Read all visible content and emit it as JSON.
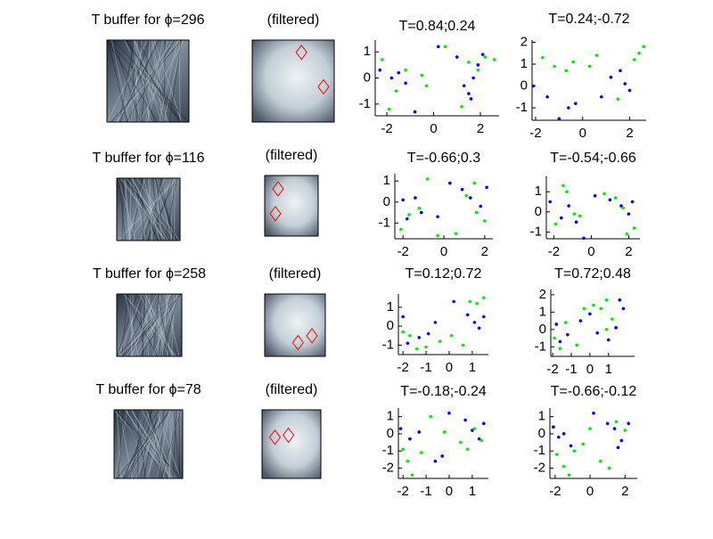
{
  "chart_data": [
    {
      "type": "image",
      "title": "T buffer for ϕ=296"
    },
    {
      "type": "image",
      "title": "(filtered)"
    },
    {
      "type": "scatter",
      "title": "T=0.84;0.24",
      "xlim": [
        -2.5,
        2.8
      ],
      "ylim": [
        -1.45,
        1.45
      ],
      "xticks": [
        -2,
        0,
        2
      ],
      "yticks": [
        -1,
        0,
        1
      ],
      "series": [
        {
          "color": "#0000ff",
          "x": [
            -2.3,
            -1.8,
            -1.5,
            -1.2,
            -0.8,
            0.2,
            1,
            1.3,
            1.5,
            1.7,
            1.9,
            2.1,
            1.6
          ],
          "values": [
            0.3,
            0,
            0.2,
            -0.2,
            -1.3,
            1.2,
            0.8,
            -0.3,
            -0.6,
            0,
            0.5,
            0.9,
            -0.8
          ]
        },
        {
          "color": "#00ee00",
          "x": [
            -2.2,
            -1.9,
            -1.6,
            -1.2,
            -0.5,
            -0.3,
            0.5,
            1.2,
            1.5,
            2.2,
            1.9,
            2.6
          ],
          "values": [
            0.7,
            -1.2,
            -0.5,
            0.3,
            0.1,
            -0.3,
            1.2,
            -1.1,
            0.6,
            0.8,
            0.3,
            0.7
          ]
        }
      ]
    },
    {
      "type": "scatter",
      "title": "T=0.24;-0.72",
      "xlim": [
        -2.15,
        2.7
      ],
      "ylim": [
        -1.57,
        2.1
      ],
      "xticks": [
        -2,
        0,
        2
      ],
      "yticks": [
        -1,
        0,
        1,
        2
      ],
      "series": [
        {
          "color": "#0000ff",
          "x": [
            -2.1,
            -1.5,
            -1,
            -0.6,
            -0.3,
            0.8,
            1.2,
            1.6,
            2,
            1.8
          ],
          "values": [
            0,
            -0.5,
            -1.5,
            -1,
            -0.8,
            -0.5,
            0.4,
            0.7,
            -0.2,
            0.1
          ]
        },
        {
          "color": "#00ee00",
          "x": [
            -1.7,
            -1.2,
            -0.7,
            -0.4,
            0.3,
            0.6,
            1.5,
            2.2,
            2.6,
            2.4
          ],
          "values": [
            1.3,
            0.9,
            0.7,
            1.1,
            0.9,
            1.4,
            -0.6,
            1.2,
            1.8,
            1.5
          ]
        }
      ]
    },
    {
      "type": "image",
      "title": "T buffer for ϕ=116"
    },
    {
      "type": "image",
      "title": "(filtered)"
    },
    {
      "type": "scatter",
      "title": "T=-0.66;0.3",
      "xlim": [
        -2.4,
        2.4
      ],
      "ylim": [
        -1.75,
        1.35
      ],
      "xticks": [
        -2,
        0,
        2
      ],
      "yticks": [
        -1,
        0,
        1
      ],
      "series": [
        {
          "color": "#0000ff",
          "x": [
            -2,
            -1.8,
            -1.4,
            -1.1,
            -0.3,
            0.3,
            0.9,
            1.3,
            1.8,
            2.1
          ],
          "values": [
            0.1,
            -0.8,
            0.2,
            -0.5,
            -0.7,
            0.9,
            0.6,
            0.2,
            -0.2,
            0.7
          ]
        },
        {
          "color": "#00ee00",
          "x": [
            -2.1,
            -1.7,
            -1.2,
            -0.8,
            -0.3,
            0.6,
            1.1,
            1.6,
            2,
            1.5
          ],
          "values": [
            -1.3,
            -0.6,
            -0.3,
            1.1,
            -1.6,
            -1.5,
            0.3,
            -0.5,
            -0.9,
            0.9
          ]
        }
      ]
    },
    {
      "type": "scatter",
      "title": "T=-0.54;-0.66",
      "xlim": [
        -2.4,
        2.6
      ],
      "ylim": [
        -1.33,
        1.76
      ],
      "xticks": [
        -2,
        0,
        2
      ],
      "yticks": [
        -1,
        0,
        1
      ],
      "series": [
        {
          "color": "#0000ff",
          "x": [
            -2.2,
            -1.6,
            -1.2,
            -0.8,
            -0.4,
            0.2,
            1,
            1.6,
            2,
            2.2
          ],
          "values": [
            0.5,
            -0.3,
            0.3,
            -0.5,
            -1.3,
            0.8,
            0.6,
            0.3,
            -0.1,
            0.5
          ]
        },
        {
          "color": "#00ee00",
          "x": [
            -1.9,
            -1.5,
            -1.3,
            -0.9,
            -0.6,
            0.7,
            1.3,
            1.9,
            2.3,
            1.7
          ],
          "values": [
            -0.6,
            1.3,
            1,
            -0.1,
            -0.2,
            0.9,
            0.7,
            -1.1,
            -0.8,
            0.2
          ]
        }
      ]
    },
    {
      "type": "image",
      "title": "T buffer for ϕ=258"
    },
    {
      "type": "image",
      "title": "(filtered)"
    },
    {
      "type": "scatter",
      "title": "T=0.12;0.72",
      "xlim": [
        -2.2,
        1.7
      ],
      "ylim": [
        -1.5,
        1.7
      ],
      "xticks": [
        -2,
        -1,
        0,
        1
      ],
      "yticks": [
        -1,
        0,
        1
      ],
      "series": [
        {
          "color": "#0000ff",
          "x": [
            -2,
            -1.8,
            -1.3,
            -0.9,
            -0.6,
            0.2,
            0.8,
            1.1,
            1.3,
            1.5
          ],
          "values": [
            0.5,
            -0.9,
            -0.6,
            -0.4,
            0.2,
            1.3,
            0.6,
            0.2,
            -0.1,
            0.5
          ]
        },
        {
          "color": "#00ee00",
          "x": [
            -2,
            -1.7,
            -1.4,
            -1,
            -0.4,
            0.1,
            0.6,
            1.2,
            1.5,
            0.9
          ],
          "values": [
            -0.3,
            -0.5,
            -1.2,
            -1.1,
            -0.8,
            -0.5,
            -1,
            1.2,
            1.5,
            1.3
          ]
        }
      ]
    },
    {
      "type": "scatter",
      "title": "T=0.72;0.48",
      "xlim": [
        -2.1,
        2.4
      ],
      "ylim": [
        -1.55,
        2.3
      ],
      "xticks": [
        -2,
        -1,
        0,
        1
      ],
      "yticks": [
        -1,
        0,
        1,
        2
      ],
      "series": [
        {
          "color": "#0000ff",
          "x": [
            -1.8,
            -1.6,
            -1.2,
            -0.5,
            0,
            0.4,
            1,
            1.4,
            1.8,
            1.6
          ],
          "values": [
            0.3,
            -0.7,
            -0.3,
            0.5,
            0.9,
            -0.2,
            -0.6,
            0.1,
            1.2,
            1.7
          ]
        },
        {
          "color": "#00ee00",
          "x": [
            -1.9,
            -1.6,
            -1.3,
            -0.7,
            -0.3,
            0.2,
            0.6,
            0.9,
            1.2,
            0.9
          ],
          "values": [
            -0.5,
            -1.1,
            0.4,
            -0.9,
            1.2,
            1.4,
            1.2,
            1.7,
            0.6,
            0
          ]
        }
      ]
    },
    {
      "type": "image",
      "title": "T buffer for ϕ=78"
    },
    {
      "type": "image",
      "title": "(filtered)"
    },
    {
      "type": "scatter",
      "title": "T=-0.18;-0.24",
      "xlim": [
        -2.2,
        1.7
      ],
      "ylim": [
        -2.6,
        1.5
      ],
      "xticks": [
        -2,
        -1,
        0,
        1
      ],
      "yticks": [
        -2,
        -1,
        0,
        1
      ],
      "series": [
        {
          "color": "#0000ff",
          "x": [
            -2.1,
            -1.7,
            -1.3,
            -0.6,
            -0.3,
            0,
            0.7,
            1,
            1.3,
            1.5
          ],
          "values": [
            0.3,
            -0.3,
            0.1,
            -1.6,
            -1.3,
            1.2,
            0.8,
            0.2,
            -0.3,
            0.6
          ]
        },
        {
          "color": "#00ee00",
          "x": [
            -2,
            -1.8,
            -1.6,
            -1.2,
            -0.8,
            -0.2,
            0.5,
            0.8,
            1.1,
            1.4
          ],
          "values": [
            -0.9,
            -1.6,
            -2.4,
            -1.1,
            1,
            0.1,
            -0.5,
            -0.9,
            0.3,
            -0.4
          ]
        }
      ]
    },
    {
      "type": "scatter",
      "title": "T=-0.66;-0.12",
      "xlim": [
        -2.3,
        2.7
      ],
      "ylim": [
        -2.6,
        1.5
      ],
      "xticks": [
        -2,
        0,
        2
      ],
      "yticks": [
        -2,
        -1,
        0,
        1
      ],
      "series": [
        {
          "color": "#0000ff",
          "x": [
            -2.1,
            -1.8,
            -1.5,
            -1.1,
            0.2,
            1,
            1.4,
            1.8,
            2.2,
            1.6
          ],
          "values": [
            0.4,
            -0.2,
            0,
            -0.7,
            1.2,
            0.6,
            0.3,
            -0.4,
            0.6,
            -0.8
          ]
        },
        {
          "color": "#00ee00",
          "x": [
            -1.9,
            -1.5,
            -1.2,
            -0.9,
            -0.4,
            0,
            0.6,
            1.1,
            1.5,
            2
          ],
          "values": [
            -1.2,
            -1.9,
            -2.4,
            -1,
            -0.6,
            0.3,
            -1.6,
            -2,
            0.7,
            0.2
          ]
        }
      ]
    }
  ]
}
